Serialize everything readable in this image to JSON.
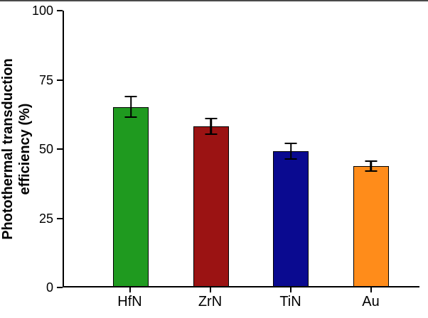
{
  "chart_data": {
    "type": "bar",
    "title": "",
    "xlabel": "",
    "ylabel": "Photothermal transduction efficiency (%)",
    "categories": [
      "HfN",
      "ZrN",
      "TiN",
      "Au"
    ],
    "values": [
      65,
      58,
      49,
      43.5
    ],
    "errors": [
      4,
      3,
      3,
      2
    ],
    "bar_colors": [
      "#1f9a1f",
      "#9b1313",
      "#0a0a90",
      "#ff8c1a"
    ],
    "error_bar_color": "#000000",
    "axis_color": "#000000",
    "ylim": [
      0,
      100
    ],
    "yticks": [
      0,
      25,
      50,
      75,
      100
    ],
    "grid": false,
    "legend": "none"
  }
}
